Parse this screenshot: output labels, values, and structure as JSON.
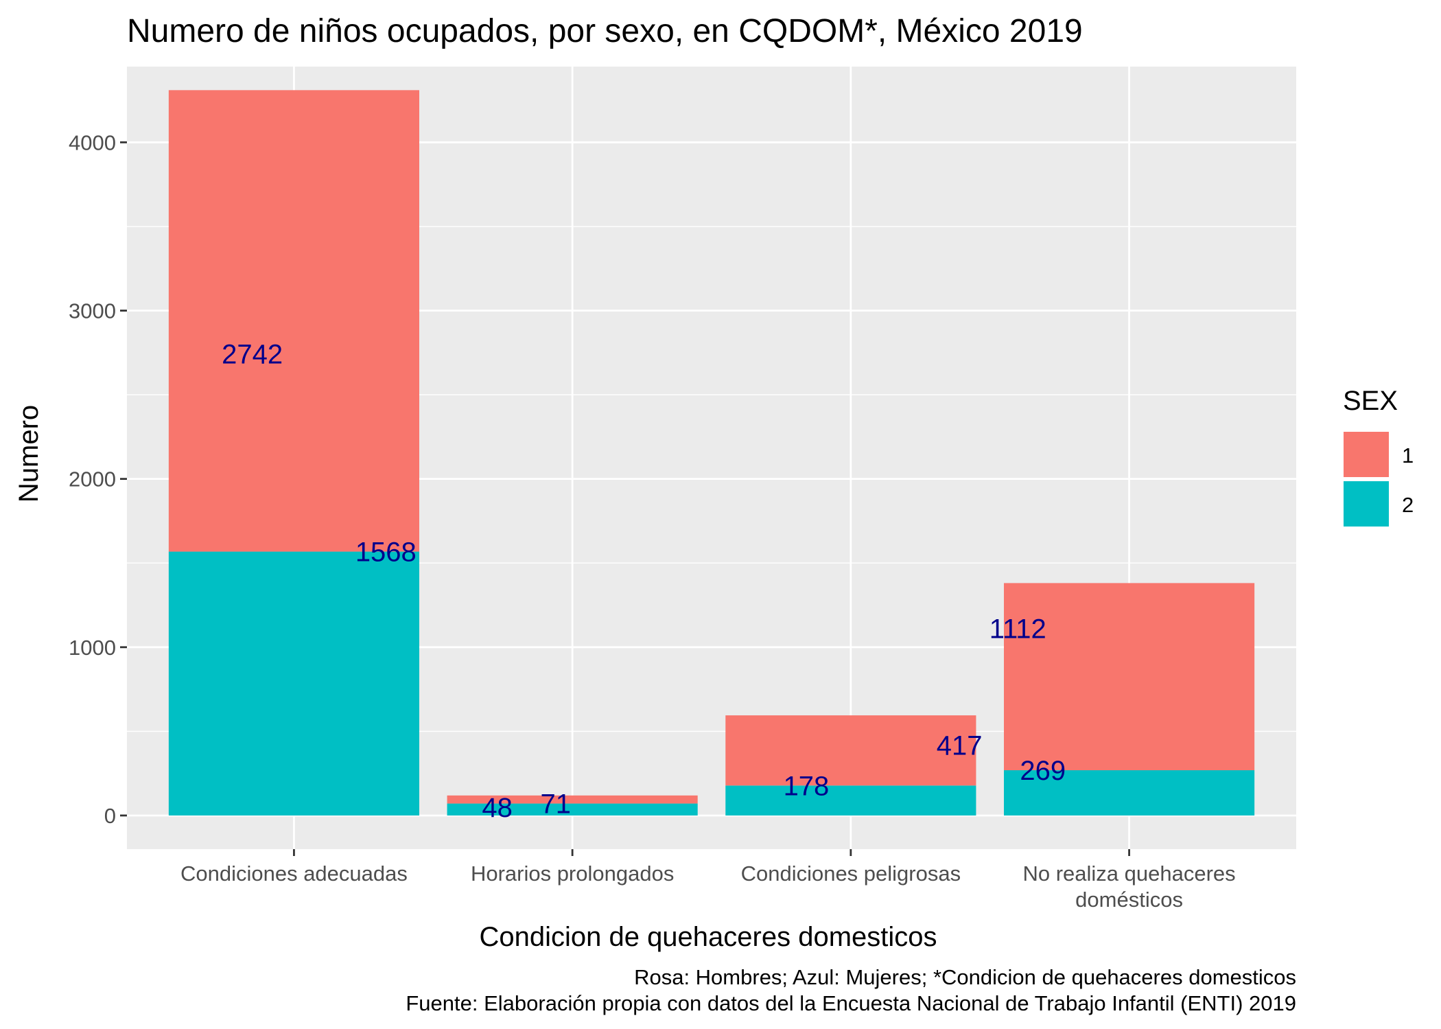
{
  "chart_data": {
    "type": "bar",
    "stacked": true,
    "title": "Numero de niños ocupados, por sexo, en CQDOM*, México 2019",
    "xlabel": "Condicion de quehaceres domesticos",
    "ylabel": "Numero",
    "ylim": [
      -200,
      4450
    ],
    "yticks": [
      0,
      1000,
      2000,
      3000,
      4000
    ],
    "grid": true,
    "legend_position": "right",
    "categories": [
      [
        "Condiciones adecuadas"
      ],
      [
        "Horarios prolongados"
      ],
      [
        "Condiciones peligrosas"
      ],
      [
        "No realiza quehaceres",
        "domésticos"
      ]
    ],
    "legend_title": "SEX",
    "series": [
      {
        "name": "2",
        "color": "#00BFC4",
        "values": [
          1568,
          71,
          178,
          269
        ]
      },
      {
        "name": "1",
        "color": "#F8766D",
        "values": [
          2742,
          48,
          417,
          1112
        ]
      }
    ],
    "legend_order": [
      "1",
      "2"
    ],
    "data_labels": [
      {
        "text": "2742",
        "x_category": 0,
        "x_offset": -0.15,
        "y": 2742
      },
      {
        "text": "1568",
        "x_category": 0,
        "x_offset": 0.33,
        "y": 1568
      },
      {
        "text": "48",
        "x_category": 1,
        "x_offset": -0.27,
        "y": 48
      },
      {
        "text": "71",
        "x_category": 1,
        "x_offset": -0.06,
        "y": 71
      },
      {
        "text": "178",
        "x_category": 2,
        "x_offset": -0.16,
        "y": 178
      },
      {
        "text": "417",
        "x_category": 2,
        "x_offset": 0.39,
        "y": 417
      },
      {
        "text": "1112",
        "x_category": 3,
        "x_offset": -0.4,
        "y": 1112
      },
      {
        "text": "269",
        "x_category": 3,
        "x_offset": -0.31,
        "y": 269
      }
    ],
    "label_color": "#00008B",
    "caption": [
      "Rosa: Hombres; Azul: Mujeres; *Condicion de quehaceres domesticos",
      "Fuente: Elaboración propia con datos del la Encuesta Nacional de Trabajo Infantil (ENTI) 2019"
    ]
  }
}
